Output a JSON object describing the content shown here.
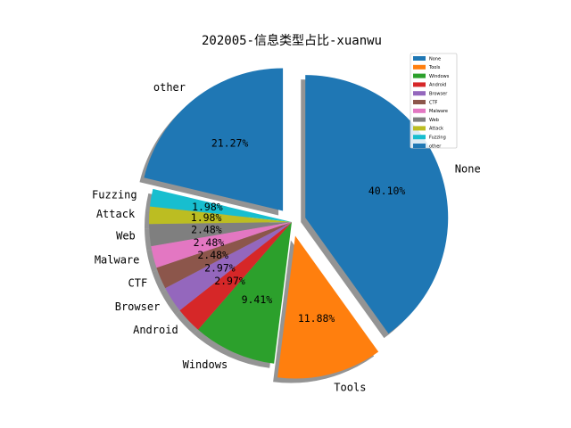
{
  "chart_data": {
    "type": "pie",
    "title": "202005-信息类型占比-xuanwu",
    "categories": [
      "None",
      "Tools",
      "Windows",
      "Android",
      "Browser",
      "CTF",
      "Malware",
      "Web",
      "Attack",
      "Fuzzing",
      "other"
    ],
    "values": [
      40.1,
      11.88,
      9.41,
      2.97,
      2.97,
      2.48,
      2.48,
      2.48,
      1.98,
      1.98,
      21.27
    ],
    "value_labels": [
      "40.10%",
      "11.88%",
      "9.41%",
      "2.97%",
      "2.97%",
      "2.48%",
      "2.48%",
      "2.48%",
      "1.98%",
      "1.98%",
      "21.27%"
    ],
    "colors": [
      "#1f77b4",
      "#ff7f0e",
      "#2ca02c",
      "#d62728",
      "#9467bd",
      "#8c564b",
      "#e377c2",
      "#7f7f7f",
      "#bcbd22",
      "#17becf",
      "#1f77b4"
    ],
    "explode": [
      0.1,
      0.1,
      0.0,
      0.0,
      0.0,
      0.0,
      0.0,
      0.0,
      0.0,
      0.0,
      0.1
    ],
    "start_angle": 90,
    "shadow": true,
    "legend": {
      "placement": "top-right",
      "entries": [
        "None",
        "Tools",
        "Windows",
        "Android",
        "Browser",
        "CTF",
        "Malware",
        "Web",
        "Attack",
        "Fuzzing",
        "other"
      ]
    }
  }
}
